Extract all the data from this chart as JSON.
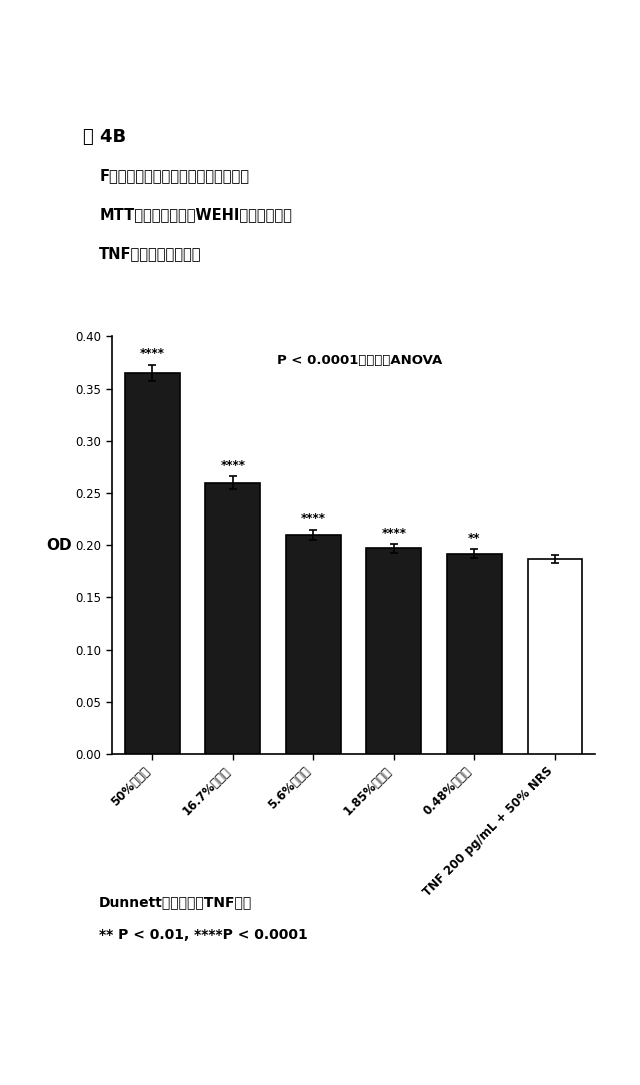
{
  "figure_label": "図 4B",
  "subtitle_lines": [
    "F界面免疫源に対する抗血清による、",
    "MTTアッセイであるWEHI細胞における",
    "TNF細胞傷害性の抑制"
  ],
  "categories": [
    "50%抗血清",
    "16.7%抗血清",
    "5.6%抗血清",
    "1.85%抗血清",
    "0.48%抗血清",
    "TNF 200 pg/mL + 50% NRS"
  ],
  "values": [
    0.365,
    0.26,
    0.21,
    0.197,
    0.192,
    0.187
  ],
  "error_bars": [
    0.008,
    0.006,
    0.005,
    0.004,
    0.004,
    0.004
  ],
  "bar_colors": [
    "#1a1a1a",
    "#1a1a1a",
    "#1a1a1a",
    "#1a1a1a",
    "#1a1a1a",
    "#ffffff"
  ],
  "bar_edge_colors": [
    "#000000",
    "#000000",
    "#000000",
    "#000000",
    "#000000",
    "#000000"
  ],
  "significance_labels": [
    "****",
    "****",
    "****",
    "****",
    "**",
    ""
  ],
  "ylabel": "OD",
  "ylim": [
    0.0,
    0.4
  ],
  "yticks": [
    0.0,
    0.05,
    0.1,
    0.15,
    0.2,
    0.25,
    0.3,
    0.35,
    0.4
  ],
  "annotation_text": "P < 0.0001、一方向ANOVA",
  "footnote_line1": "Dunnett多重比較対TNFのみ",
  "footnote_line2": "** P < 0.01, ****P < 0.0001",
  "background_color": "#ffffff"
}
